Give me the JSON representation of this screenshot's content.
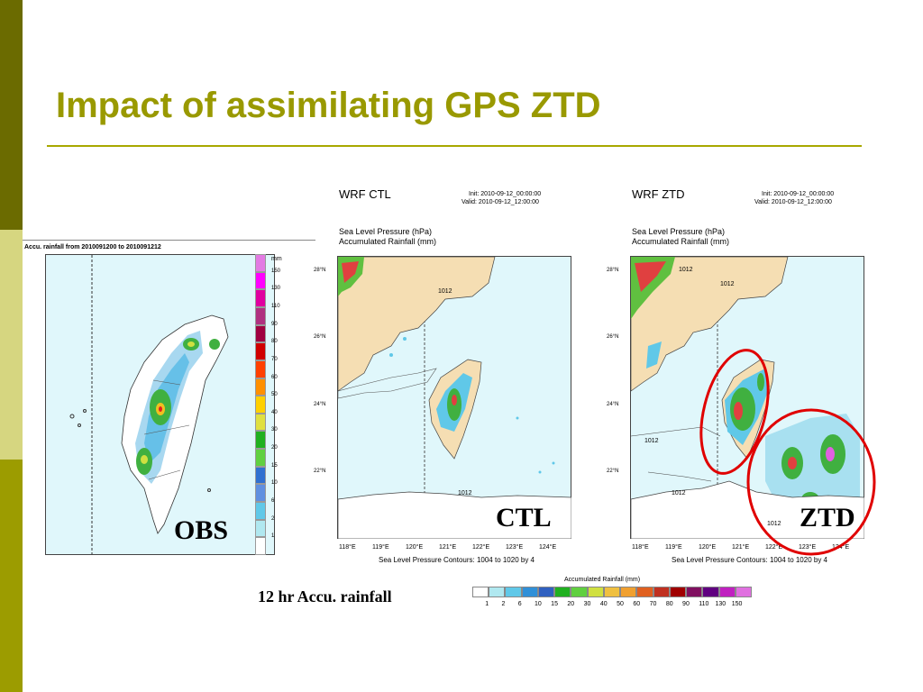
{
  "slide": {
    "title": "Impact of assimilating GPS ZTD",
    "colors": {
      "accent": "#999900",
      "sidebar_dark": "#6b6b00",
      "sidebar_light": "#d6d680",
      "sidebar_mid": "#9c9c00"
    }
  },
  "obs_panel": {
    "header": "Accu. rainfall from 2010091200 to 2010091212",
    "label": "OBS",
    "scale_unit": "mm",
    "scale_values": [
      "150",
      "130",
      "110",
      "90",
      "80",
      "70",
      "60",
      "50",
      "40",
      "30",
      "20",
      "15",
      "10",
      "6",
      "2",
      "1"
    ],
    "scale_colors": [
      "#e37ae3",
      "#ff00ff",
      "#e000a0",
      "#b03080",
      "#a00040",
      "#d00000",
      "#ff4000",
      "#ff9000",
      "#ffd000",
      "#e0e040",
      "#20b020",
      "#60d040",
      "#3070d0",
      "#6090e0",
      "#60c8e8",
      "#b0e8f0",
      "#ffffff"
    ]
  },
  "ctl_panel": {
    "title": "WRF CTL",
    "init": "Init: 2010-09-12_00:00:00",
    "valid": "Valid: 2010-09-12_12:00:00",
    "field1": "Sea Level Pressure   (hPa)",
    "field2": "Accumulated Rainfall   (mm)",
    "lat_labels": [
      "28°N",
      "26°N",
      "24°N",
      "22°N"
    ],
    "lon_labels": [
      "118°E",
      "119°E",
      "120°E",
      "121°E",
      "122°E",
      "123°E",
      "124°E"
    ],
    "contour_labels": [
      "1012",
      "1012"
    ],
    "footer": "Sea Level Pressure Contours: 1004 to 1020 by 4",
    "label": "CTL"
  },
  "ztd_panel": {
    "title": "WRF ZTD",
    "init": "Init: 2010-09-12_00:00:00",
    "valid": "Valid: 2010-09-12_12:00:00",
    "field1": "Sea Level Pressure   (hPa)",
    "field2": "Accumulated Rainfall   (mm)",
    "lat_labels": [
      "28°N",
      "26°N",
      "24°N",
      "22°N"
    ],
    "lon_labels": [
      "118°E",
      "119°E",
      "120°E",
      "121°E",
      "122°E",
      "123°E",
      "124°E"
    ],
    "contour_labels": [
      "1012",
      "1012",
      "1012",
      "1012",
      "1012"
    ],
    "footer": "Sea Level Pressure Contours: 1004 to 1020 by 4",
    "label": "ZTD",
    "highlight_color": "#e00000"
  },
  "colorbar": {
    "caption": "12 hr Accu. rainfall",
    "title": "Accumulated Rainfall   (mm)",
    "ticks": [
      "1",
      "2",
      "6",
      "10",
      "15",
      "20",
      "30",
      "40",
      "50",
      "60",
      "70",
      "80",
      "90",
      "110",
      "130",
      "150"
    ],
    "colors": [
      "#ffffff",
      "#b0e8f0",
      "#60c8e8",
      "#3090d8",
      "#3060c0",
      "#20b020",
      "#60d040",
      "#d0e040",
      "#f0c040",
      "#f0a030",
      "#e06020",
      "#c03020",
      "#a00000",
      "#801060",
      "#600080",
      "#c020c0",
      "#e070e0"
    ]
  }
}
